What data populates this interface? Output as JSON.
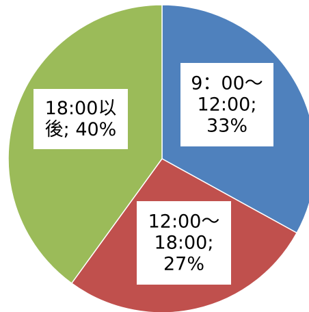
{
  "chart_data": {
    "type": "pie",
    "title": "",
    "slices": [
      {
        "category": "9：00～12:00",
        "value": 33,
        "color": "#4f81bd",
        "label_lines": [
          "9：00～",
          "12:00;",
          "33%"
        ]
      },
      {
        "category": "12:00～18:00",
        "value": 27,
        "color": "#c0504d",
        "label_lines": [
          "12:00～",
          "18:00;",
          "27%"
        ]
      },
      {
        "category": "18:00以後",
        "value": 40,
        "color": "#9bbb59",
        "label_lines": [
          "18:00以",
          "後; 40%"
        ]
      }
    ],
    "legend": "none",
    "start_angle": "12 o'clock",
    "direction": "clockwise"
  }
}
